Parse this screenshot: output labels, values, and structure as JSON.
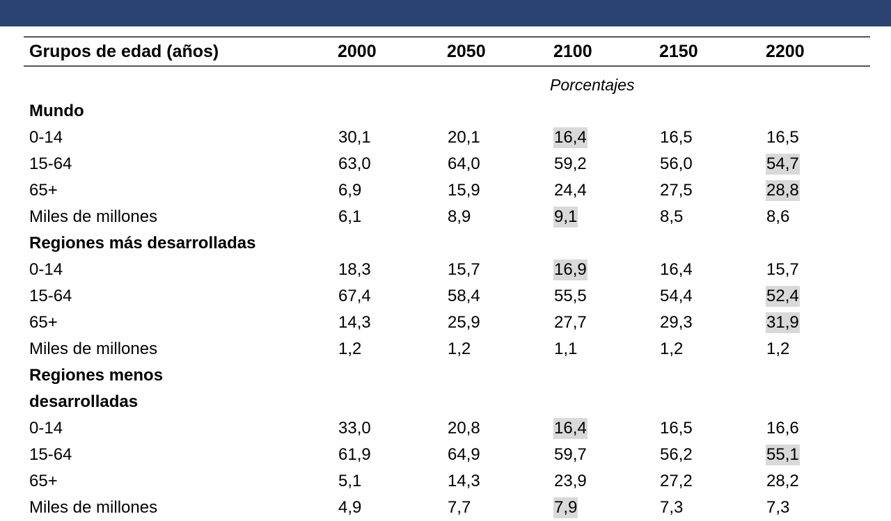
{
  "theme": {
    "band_color": "#2b4370",
    "highlight_color": "#d9d9d9"
  },
  "table": {
    "headers": [
      "Grupos de edad (años)",
      "2000",
      "2050",
      "2100",
      "2150",
      "2200"
    ],
    "unit_label": "Porcentajes",
    "sections": [
      {
        "title": "Mundo",
        "rows": [
          {
            "label": "0-14",
            "values": [
              "30,1",
              "20,1",
              "16,4",
              "16,5",
              "16,5"
            ],
            "highlight": [
              false,
              false,
              true,
              false,
              false
            ]
          },
          {
            "label": "15-64",
            "values": [
              "63,0",
              "64,0",
              "59,2",
              "56,0",
              "54,7"
            ],
            "highlight": [
              false,
              false,
              false,
              false,
              true
            ]
          },
          {
            "label": "65+",
            "values": [
              "6,9",
              "15,9",
              "24,4",
              "27,5",
              "28,8"
            ],
            "highlight": [
              false,
              false,
              false,
              false,
              true
            ]
          },
          {
            "label": "Miles de millones",
            "values": [
              "6,1",
              "8,9",
              "9,1",
              "8,5",
              "8,6"
            ],
            "highlight": [
              false,
              false,
              true,
              false,
              false
            ]
          }
        ]
      },
      {
        "title": "Regiones más desarrolladas",
        "rows": [
          {
            "label": "0-14",
            "values": [
              "18,3",
              "15,7",
              "16,9",
              "16,4",
              "15,7"
            ],
            "highlight": [
              false,
              false,
              true,
              false,
              false
            ]
          },
          {
            "label": "15-64",
            "values": [
              "67,4",
              "58,4",
              "55,5",
              "54,4",
              "52,4"
            ],
            "highlight": [
              false,
              false,
              false,
              false,
              true
            ]
          },
          {
            "label": "65+",
            "values": [
              "14,3",
              "25,9",
              "27,7",
              "29,3",
              "31,9"
            ],
            "highlight": [
              false,
              false,
              false,
              false,
              true
            ]
          },
          {
            "label": "Miles de millones",
            "values": [
              "1,2",
              "1,2",
              "1,1",
              "1,2",
              "1,2"
            ],
            "highlight": [
              false,
              false,
              false,
              false,
              false
            ]
          }
        ]
      },
      {
        "title_lines": [
          "Regiones menos",
          "desarrolladas"
        ],
        "rows": [
          {
            "label": "0-14",
            "values": [
              "33,0",
              "20,8",
              "16,4",
              "16,5",
              "16,6"
            ],
            "highlight": [
              false,
              false,
              true,
              false,
              false
            ]
          },
          {
            "label": "15-64",
            "values": [
              "61,9",
              "64,9",
              "59,7",
              "56,2",
              "55,1"
            ],
            "highlight": [
              false,
              false,
              false,
              false,
              true
            ]
          },
          {
            "label": "65+",
            "values": [
              "5,1",
              "14,3",
              "23,9",
              "27,2",
              "28,2"
            ],
            "highlight": [
              false,
              false,
              false,
              false,
              false
            ]
          },
          {
            "label": "Miles de millones",
            "values": [
              "4,9",
              "7,7",
              "7,9",
              "7,3",
              "7,3"
            ],
            "highlight": [
              false,
              false,
              true,
              false,
              false
            ]
          }
        ]
      }
    ]
  }
}
